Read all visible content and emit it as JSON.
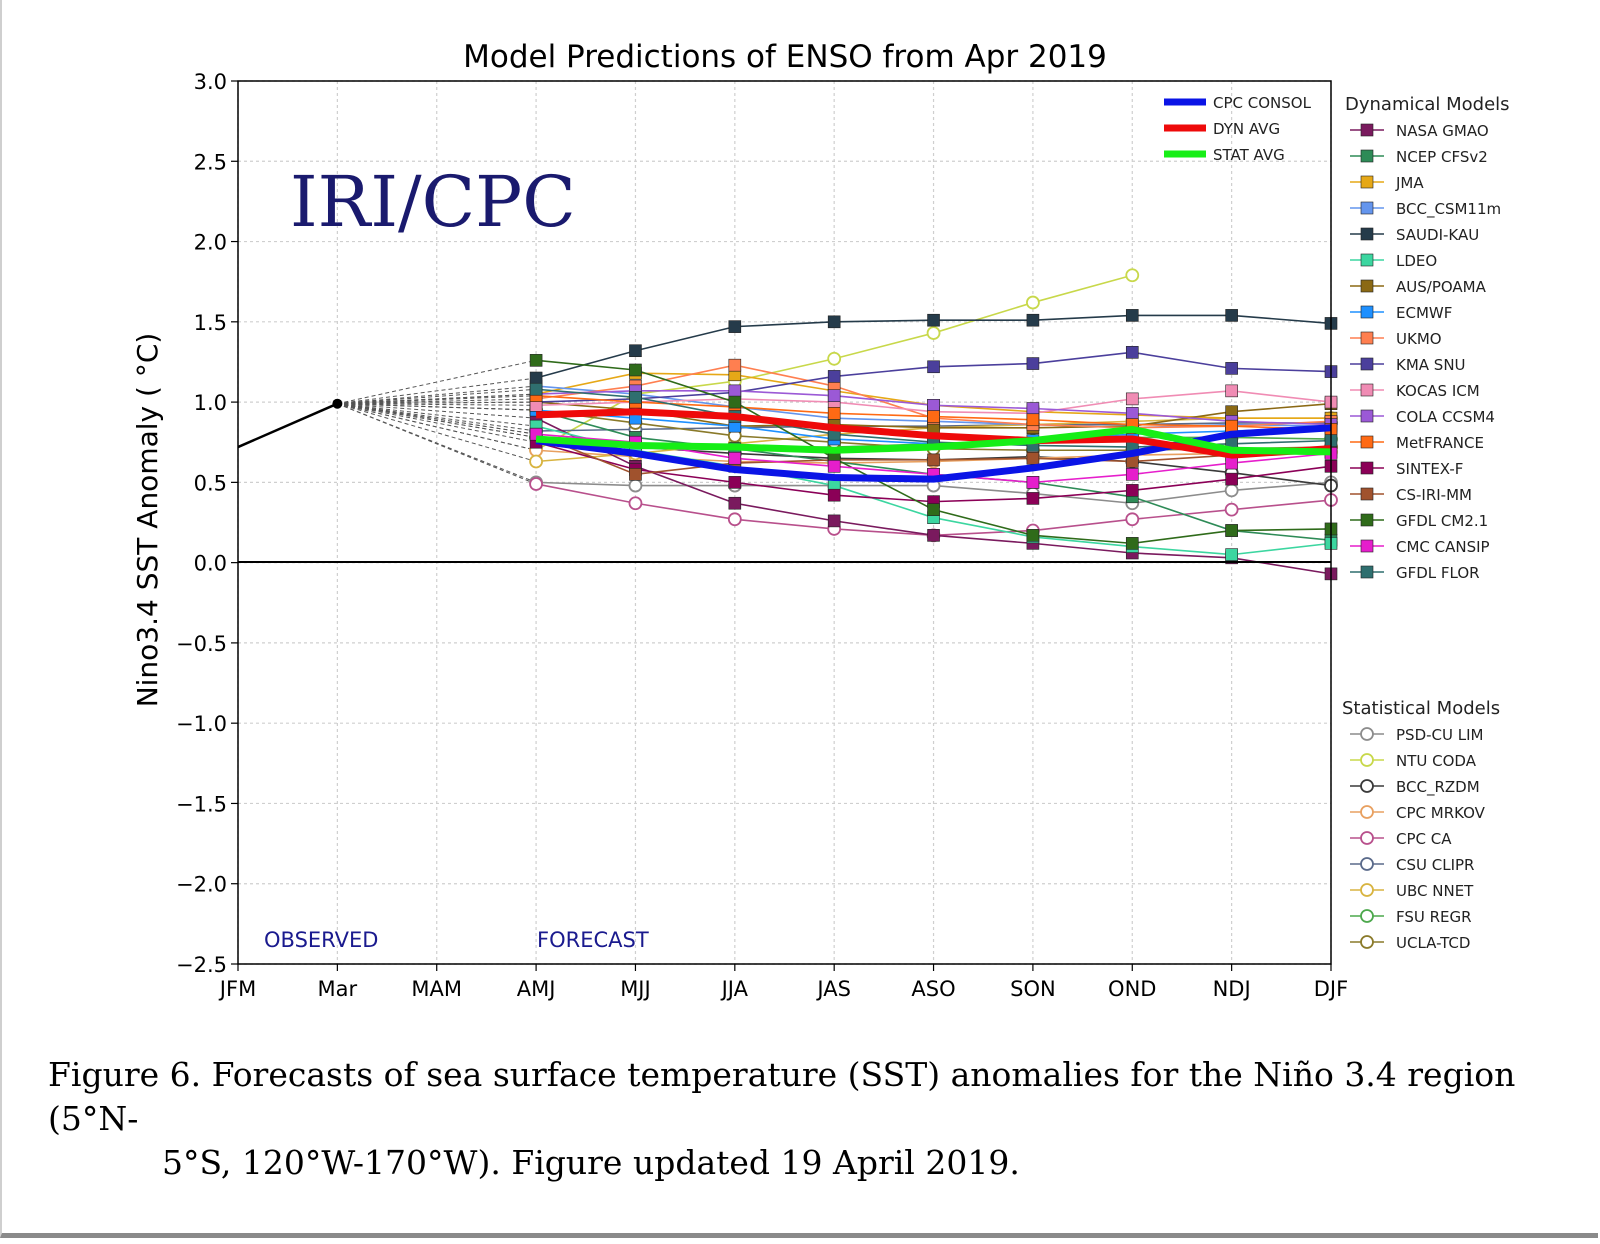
{
  "chart_data": {
    "type": "line",
    "title": "Model Predictions of ENSO from Apr 2019",
    "watermark": "IRI/CPC",
    "ylabel": "Nino3.4 SST Anomaly ( °C)",
    "xlabel": "",
    "ylim": [
      -2.5,
      3.0
    ],
    "yticks": [
      3.0,
      2.5,
      2.0,
      1.5,
      1.0,
      0.5,
      0.0,
      -0.5,
      -1.0,
      -1.5,
      -2.0,
      -2.5
    ],
    "ytick_labels": [
      "3.0",
      "2.5",
      "2.0",
      "1.5",
      "1.0",
      "0.5",
      "0.0",
      "−0.5",
      "−1.0",
      "−1.5",
      "−2.0",
      "−2.5"
    ],
    "categories": [
      "JFM",
      "Mar",
      "MAM",
      "AMJ",
      "MJJ",
      "JJA",
      "JAS",
      "ASO",
      "SON",
      "OND",
      "NDJ",
      "DJF"
    ],
    "grid": true,
    "observed_label": "OBSERVED",
    "forecast_label": "FORECAST",
    "observed": {
      "name": "Observed",
      "color": "#000000",
      "values": [
        0.72,
        0.99
      ]
    },
    "consensus_series": [
      {
        "name": "CPC CONSOL",
        "color": "#0a14e6",
        "values": [
          0.76,
          0.68,
          0.58,
          0.53,
          0.52,
          0.59,
          0.68,
          0.8,
          0.84
        ]
      },
      {
        "name": "DYN AVG",
        "color": "#ee0a0a",
        "values": [
          0.92,
          0.94,
          0.91,
          0.84,
          0.79,
          0.76,
          0.77,
          0.67,
          0.71
        ]
      },
      {
        "name": "STAT AVG",
        "color": "#16ee16",
        "values": [
          0.77,
          0.73,
          0.72,
          0.7,
          0.72,
          0.76,
          0.83,
          0.7,
          0.69
        ]
      }
    ],
    "dynamical_legend_title": "Dynamical Models",
    "dynamical_models": [
      {
        "name": "NASA GMAO",
        "color": "#7a1a5e",
        "values": [
          0.9,
          0.6,
          0.37,
          0.26,
          0.17,
          0.12,
          0.06,
          0.03,
          -0.07
        ]
      },
      {
        "name": "NCEP CFSv2",
        "color": "#2e8b57",
        "values": [
          0.95,
          0.78,
          0.71,
          0.63,
          0.55,
          0.5,
          0.41,
          0.2,
          0.14
        ]
      },
      {
        "name": "JMA",
        "color": "#e6a817",
        "values": [
          1.05,
          1.18,
          1.17,
          1.07,
          0.98,
          0.94,
          0.92,
          0.9,
          0.9
        ]
      },
      {
        "name": "BCC_CSM11m",
        "color": "#6495ed",
        "values": [
          1.1,
          1.05,
          0.97,
          0.9,
          0.88,
          0.86,
          0.84,
          0.86,
          0.85
        ]
      },
      {
        "name": "SAUDI-KAU",
        "color": "#253b4a",
        "values": [
          1.15,
          1.32,
          1.47,
          1.5,
          1.51,
          1.51,
          1.54,
          1.54,
          1.49
        ]
      },
      {
        "name": "LDEO",
        "color": "#3cd6a0",
        "values": [
          0.85,
          0.7,
          0.6,
          0.48,
          0.28,
          0.16,
          0.1,
          0.05,
          0.12
        ]
      },
      {
        "name": "AUS/POAMA",
        "color": "#8b6914",
        "values": [
          1.0,
          0.95,
          0.85,
          0.86,
          0.84,
          0.84,
          0.85,
          0.94,
          0.99
        ]
      },
      {
        "name": "ECMWF",
        "color": "#1e90ff",
        "values": [
          0.95,
          0.9,
          0.85,
          0.77,
          0.74,
          0.76,
          0.8,
          0.82,
          0.84
        ]
      },
      {
        "name": "UKMO",
        "color": "#ff7f50",
        "values": [
          1.02,
          1.1,
          1.23,
          1.1,
          0.9,
          0.86,
          0.84,
          0.85,
          0.88
        ]
      },
      {
        "name": "KMA SNU",
        "color": "#4b3f9c",
        "values": [
          1.0,
          1.02,
          1.06,
          1.16,
          1.22,
          1.24,
          1.31,
          1.21,
          1.19
        ]
      },
      {
        "name": "KOCAS ICM",
        "color": "#f08cb4",
        "values": [
          0.98,
          1.0,
          1.02,
          1.0,
          0.94,
          0.93,
          1.02,
          1.07,
          1.0
        ]
      },
      {
        "name": "COLA CCSM4",
        "color": "#9b59d6",
        "values": [
          1.05,
          1.07,
          1.07,
          1.04,
          0.98,
          0.96,
          0.93,
          0.88,
          0.86
        ]
      },
      {
        "name": "MetFRANCE",
        "color": "#ff6a14",
        "values": [
          1.04,
          1.0,
          0.97,
          0.93,
          0.91,
          0.89,
          0.86,
          0.85,
          0.83
        ]
      },
      {
        "name": "SINTEX-F",
        "color": "#8b0057",
        "values": [
          0.75,
          0.58,
          0.5,
          0.42,
          0.38,
          0.4,
          0.45,
          0.52,
          0.6
        ]
      },
      {
        "name": "CS-IRI-MM",
        "color": "#a0522d",
        "values": [
          0.8,
          0.55,
          0.62,
          0.64,
          0.64,
          0.65,
          0.63,
          0.67,
          0.69
        ]
      },
      {
        "name": "GFDL CM2.1",
        "color": "#2f6b1a",
        "values": [
          1.26,
          1.2,
          1.0,
          0.65,
          0.33,
          0.17,
          0.12,
          0.2,
          0.21
        ]
      },
      {
        "name": "CMC CANSIP",
        "color": "#e61ecc",
        "values": [
          0.8,
          0.75,
          0.65,
          0.6,
          0.55,
          0.5,
          0.55,
          0.62,
          0.68
        ]
      },
      {
        "name": "GFDL FLOR",
        "color": "#2f6f6f",
        "values": [
          1.08,
          1.03,
          0.91,
          0.8,
          0.75,
          0.73,
          0.72,
          0.74,
          0.76
        ]
      }
    ],
    "statistical_legend_title": "Statistical Models",
    "statistical_models": [
      {
        "name": "PSD-CU LIM",
        "color": "#8c8c8c",
        "values": [
          0.5,
          0.48,
          0.48,
          0.48,
          0.48,
          0.43,
          0.37,
          0.45,
          0.5
        ]
      },
      {
        "name": "NTU CODA",
        "color": "#c8d84a",
        "values": [
          0.7,
          1.05,
          1.13,
          1.27,
          1.43,
          1.62,
          1.79
        ]
      },
      {
        "name": "BCC_RZDM",
        "color": "#3a3a3a",
        "values": [
          0.78,
          0.72,
          0.68,
          0.65,
          0.64,
          0.66,
          0.63,
          0.56,
          0.48
        ]
      },
      {
        "name": "CPC MRKOV",
        "color": "#e8a060",
        "values": [
          0.7,
          0.66,
          0.63,
          0.62,
          0.63,
          0.65,
          0.67,
          0.68,
          0.69
        ]
      },
      {
        "name": "CPC CA",
        "color": "#b8508c",
        "values": [
          0.49,
          0.37,
          0.27,
          0.21,
          0.17,
          0.2,
          0.27,
          0.33,
          0.39
        ]
      },
      {
        "name": "CSU CLIPR",
        "color": "#5a6a8a",
        "values": [
          0.82,
          0.83,
          0.84,
          0.85,
          0.85,
          0.86,
          0.86,
          0.87,
          0.87
        ]
      },
      {
        "name": "UBC NNET",
        "color": "#d8b440",
        "values": [
          0.63,
          0.68,
          0.74,
          0.8,
          0.84,
          0.86,
          0.88,
          0.9,
          0.9
        ]
      },
      {
        "name": "FSU REGR",
        "color": "#4ca84c",
        "values": [
          0.78,
          0.74,
          0.72,
          0.72,
          0.74,
          0.76,
          0.78,
          0.78,
          0.77
        ]
      },
      {
        "name": "UCLA-TCD",
        "color": "#8a7a2a",
        "values": [
          0.95,
          0.87,
          0.79,
          0.75,
          0.71,
          0.7,
          0.7,
          0.71,
          0.72
        ]
      }
    ]
  },
  "caption": {
    "line1": "Figure 6. Forecasts of sea surface temperature (SST) anomalies for the Niño 3.4 region (5°N-",
    "line2": "5°S, 120°W-170°W). Figure updated 19 April 2019."
  }
}
